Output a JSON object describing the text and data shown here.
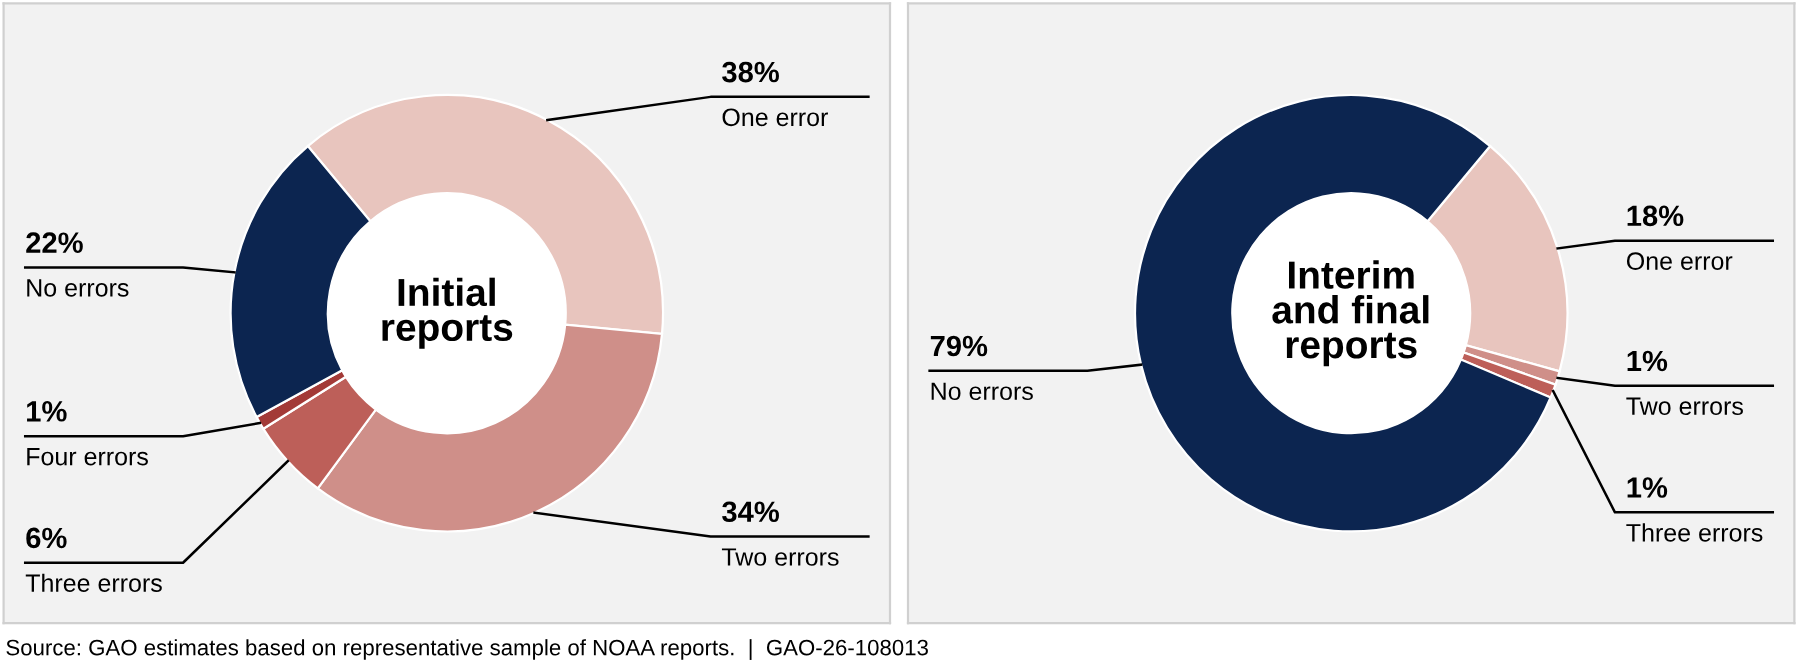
{
  "chart_data": [
    {
      "type": "donut",
      "title": "Initial\nreports",
      "categories": [
        "One error",
        "Two errors",
        "Three errors",
        "Four errors",
        "No errors"
      ],
      "values": [
        38,
        34,
        6,
        1,
        22
      ],
      "value_labels": [
        "38%",
        "34%",
        "6%",
        "1%",
        "22%"
      ],
      "colors": [
        "#e8c5be",
        "#cf8f89",
        "#bd5f59",
        "#a33a37",
        "#0c2550"
      ],
      "annotations": [
        "Source: GAO estimates based on representative sample of NOAA reports.  |  GAO-26-108013"
      ]
    },
    {
      "type": "donut",
      "title": "Interim\nand final\nreports",
      "categories": [
        "One error",
        "Two errors",
        "Three errors",
        "No errors"
      ],
      "values": [
        18,
        1,
        1,
        79
      ],
      "value_labels": [
        "18%",
        "1%",
        "1%",
        "79%"
      ],
      "colors": [
        "#e8c5be",
        "#cf8f89",
        "#bd5f59",
        "#0c2550"
      ]
    }
  ]
}
